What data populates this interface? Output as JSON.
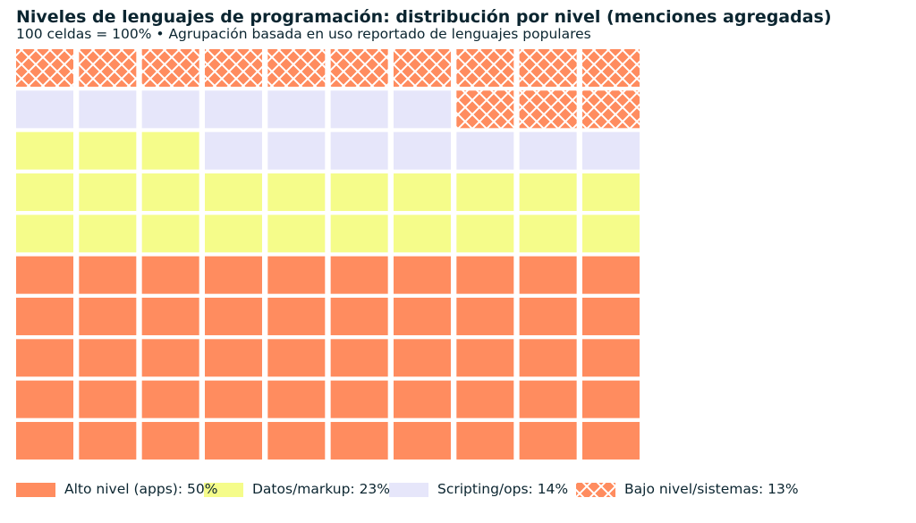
{
  "chart_data": {
    "type": "waffle",
    "title": "Niveles de lenguajes de programación: distribución por nivel (menciones agregadas)",
    "subtitle": "100 celdas = 100% • Agrupación basada en uso reportado de lenguajes populares",
    "grid": {
      "rows": 10,
      "columns": 10,
      "fill_order": "bottom-left, row by row"
    },
    "legend_placement": "bottom",
    "series": [
      {
        "name": "Alto nivel (apps)",
        "value": 50,
        "label": "Alto nivel (apps): 50%",
        "color": "#ff8c5f",
        "hatch": false
      },
      {
        "name": "Datos/markup",
        "value": 23,
        "label": "Datos/markup: 23%",
        "color": "#f5fc8a",
        "hatch": false
      },
      {
        "name": "Scripting/ops",
        "value": 14,
        "label": "Scripting/ops: 14%",
        "color": "#e6e6fa",
        "hatch": false
      },
      {
        "name": "Bajo nivel/sistemas",
        "value": 13,
        "label": "Bajo nivel/sistemas: 13%",
        "color": "#ff8c5f",
        "hatch": true
      }
    ]
  }
}
